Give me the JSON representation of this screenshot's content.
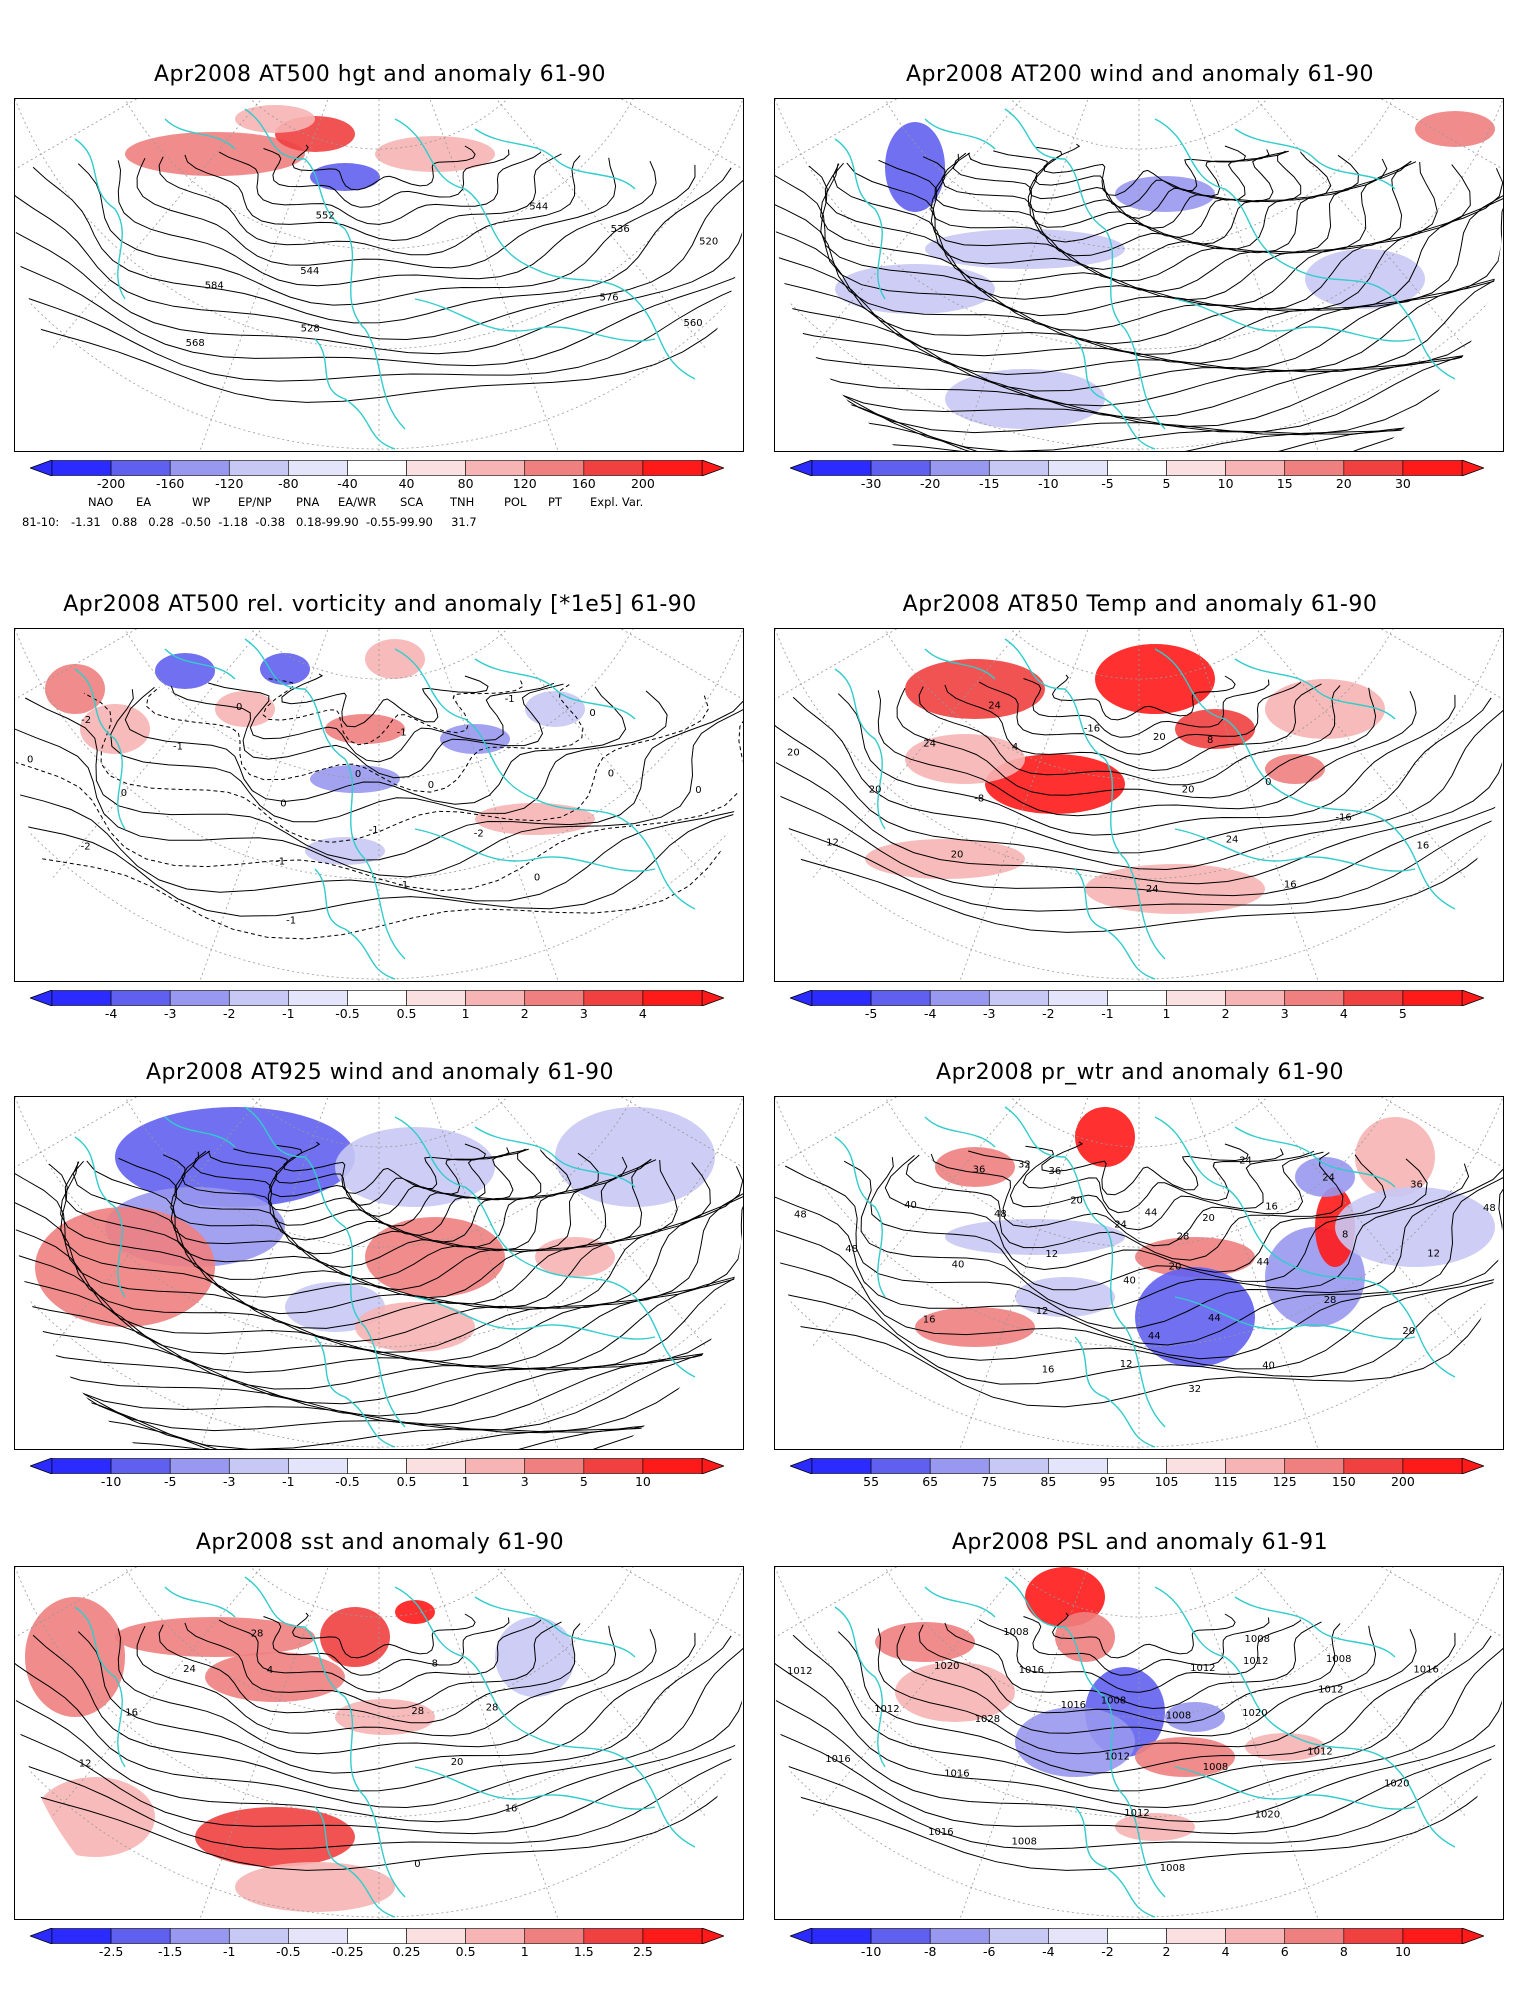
{
  "panels": [
    {
      "id": "p1",
      "title": "Apr2008 AT500 hgt and anomaly 61-90",
      "labels": [
        "520",
        "528",
        "536",
        "544",
        "544",
        "552",
        "560",
        "568",
        "576",
        "584"
      ],
      "colorbar": [
        "-200",
        "-160",
        "-120",
        "-80",
        "-40",
        "40",
        "80",
        "120",
        "160",
        "200"
      ]
    },
    {
      "id": "p2",
      "title": "Apr2008 AT200 wind and anomaly 61-90",
      "labels": [],
      "colorbar": [
        "-30",
        "-20",
        "-15",
        "-10",
        "-5",
        "5",
        "10",
        "15",
        "20",
        "30"
      ]
    },
    {
      "id": "p3",
      "title": "Apr2008 AT500 rel. vorticity and anomaly [*1e5] 61-90",
      "labels": [
        "-2",
        "0",
        "0",
        "-2",
        "-1",
        "0",
        "0",
        "-1",
        "0",
        "-1",
        "-2",
        "-1",
        "0",
        "0",
        "-1",
        "-1",
        "0",
        "-1",
        "0",
        "0"
      ],
      "colorbar": [
        "-4",
        "-3",
        "-2",
        "-1",
        "-0.5",
        "0.5",
        "1",
        "2",
        "3",
        "4"
      ]
    },
    {
      "id": "p4",
      "title": "Apr2008 AT850 Temp and anomaly 61-90",
      "labels": [
        "-16",
        "16",
        "20",
        "-16",
        "-8",
        "0",
        "4",
        "8",
        "12",
        "16",
        "20",
        "24",
        "24",
        "20",
        "24",
        "20",
        "20",
        "24"
      ],
      "colorbar": [
        "-5",
        "-4",
        "-3",
        "-2",
        "-1",
        "1",
        "2",
        "3",
        "4",
        "5"
      ]
    },
    {
      "id": "p5",
      "title": "Apr2008 AT925 wind and anomaly 61-90",
      "labels": [],
      "colorbar": [
        "-10",
        "-5",
        "-3",
        "-1",
        "-0.5",
        "0.5",
        "1",
        "3",
        "5",
        "10"
      ]
    },
    {
      "id": "p6",
      "title": "Apr2008 pr_wtr and anomaly 61-90",
      "labels": [
        "28",
        "32",
        "32",
        "48",
        "44",
        "36",
        "40",
        "24",
        "24",
        "24",
        "16",
        "12",
        "12",
        "8",
        "12",
        "16",
        "20",
        "20",
        "16",
        "28",
        "40",
        "44",
        "48",
        "20",
        "36",
        "40",
        "48",
        "44",
        "40",
        "20",
        "36",
        "44",
        "48",
        "12"
      ],
      "colorbar": [
        "55",
        "65",
        "75",
        "85",
        "95",
        "105",
        "115",
        "125",
        "150",
        "200"
      ]
    },
    {
      "id": "p7",
      "title": "Apr2008 sst and anomaly 61-90",
      "labels": [
        "28",
        "4",
        "8",
        "12",
        "16",
        "16",
        "20",
        "24",
        "28",
        "28",
        "0"
      ],
      "colorbar": [
        "-2.5",
        "-1.5",
        "-1",
        "-0.5",
        "-0.25",
        "0.25",
        "0.5",
        "1",
        "1.5",
        "2.5"
      ]
    },
    {
      "id": "p8",
      "title": "Apr2008 PSL and anomaly 61-91",
      "labels": [
        "1012",
        "1016",
        "1012",
        "1016",
        "1020",
        "1016",
        "1012",
        "1028",
        "1020",
        "1016",
        "1012",
        "1016",
        "1020",
        "1012",
        "1008",
        "1020",
        "1008",
        "1008",
        "1008",
        "1012",
        "1012",
        "1016",
        "1012",
        "1008",
        "1008",
        "1008",
        "1008"
      ],
      "colorbar": [
        "-10",
        "-8",
        "-6",
        "-4",
        "-2",
        "2",
        "4",
        "6",
        "8",
        "10"
      ]
    }
  ],
  "teleconnections": {
    "header": [
      "NAO",
      "EA",
      "WP",
      "EP/NP",
      "PNA",
      "EA/WR",
      "SCA",
      "TNH",
      "POL",
      "PT",
      "Expl. Var."
    ],
    "row_label": "81-10:",
    "values": "-1.31   0.88   0.28  -0.50  -1.18  -0.38   0.18-99.90  -0.55-99.90     31.7"
  },
  "colors": {
    "coast": "#33cccc",
    "blues": [
      "#2b2bff",
      "#6060f0",
      "#9898f0",
      "#c8c8f4",
      "#e4e4fa"
    ],
    "reds": [
      "#fae0e0",
      "#f7b4b4",
      "#f08080",
      "#f04040",
      "#ff1a1a"
    ]
  }
}
